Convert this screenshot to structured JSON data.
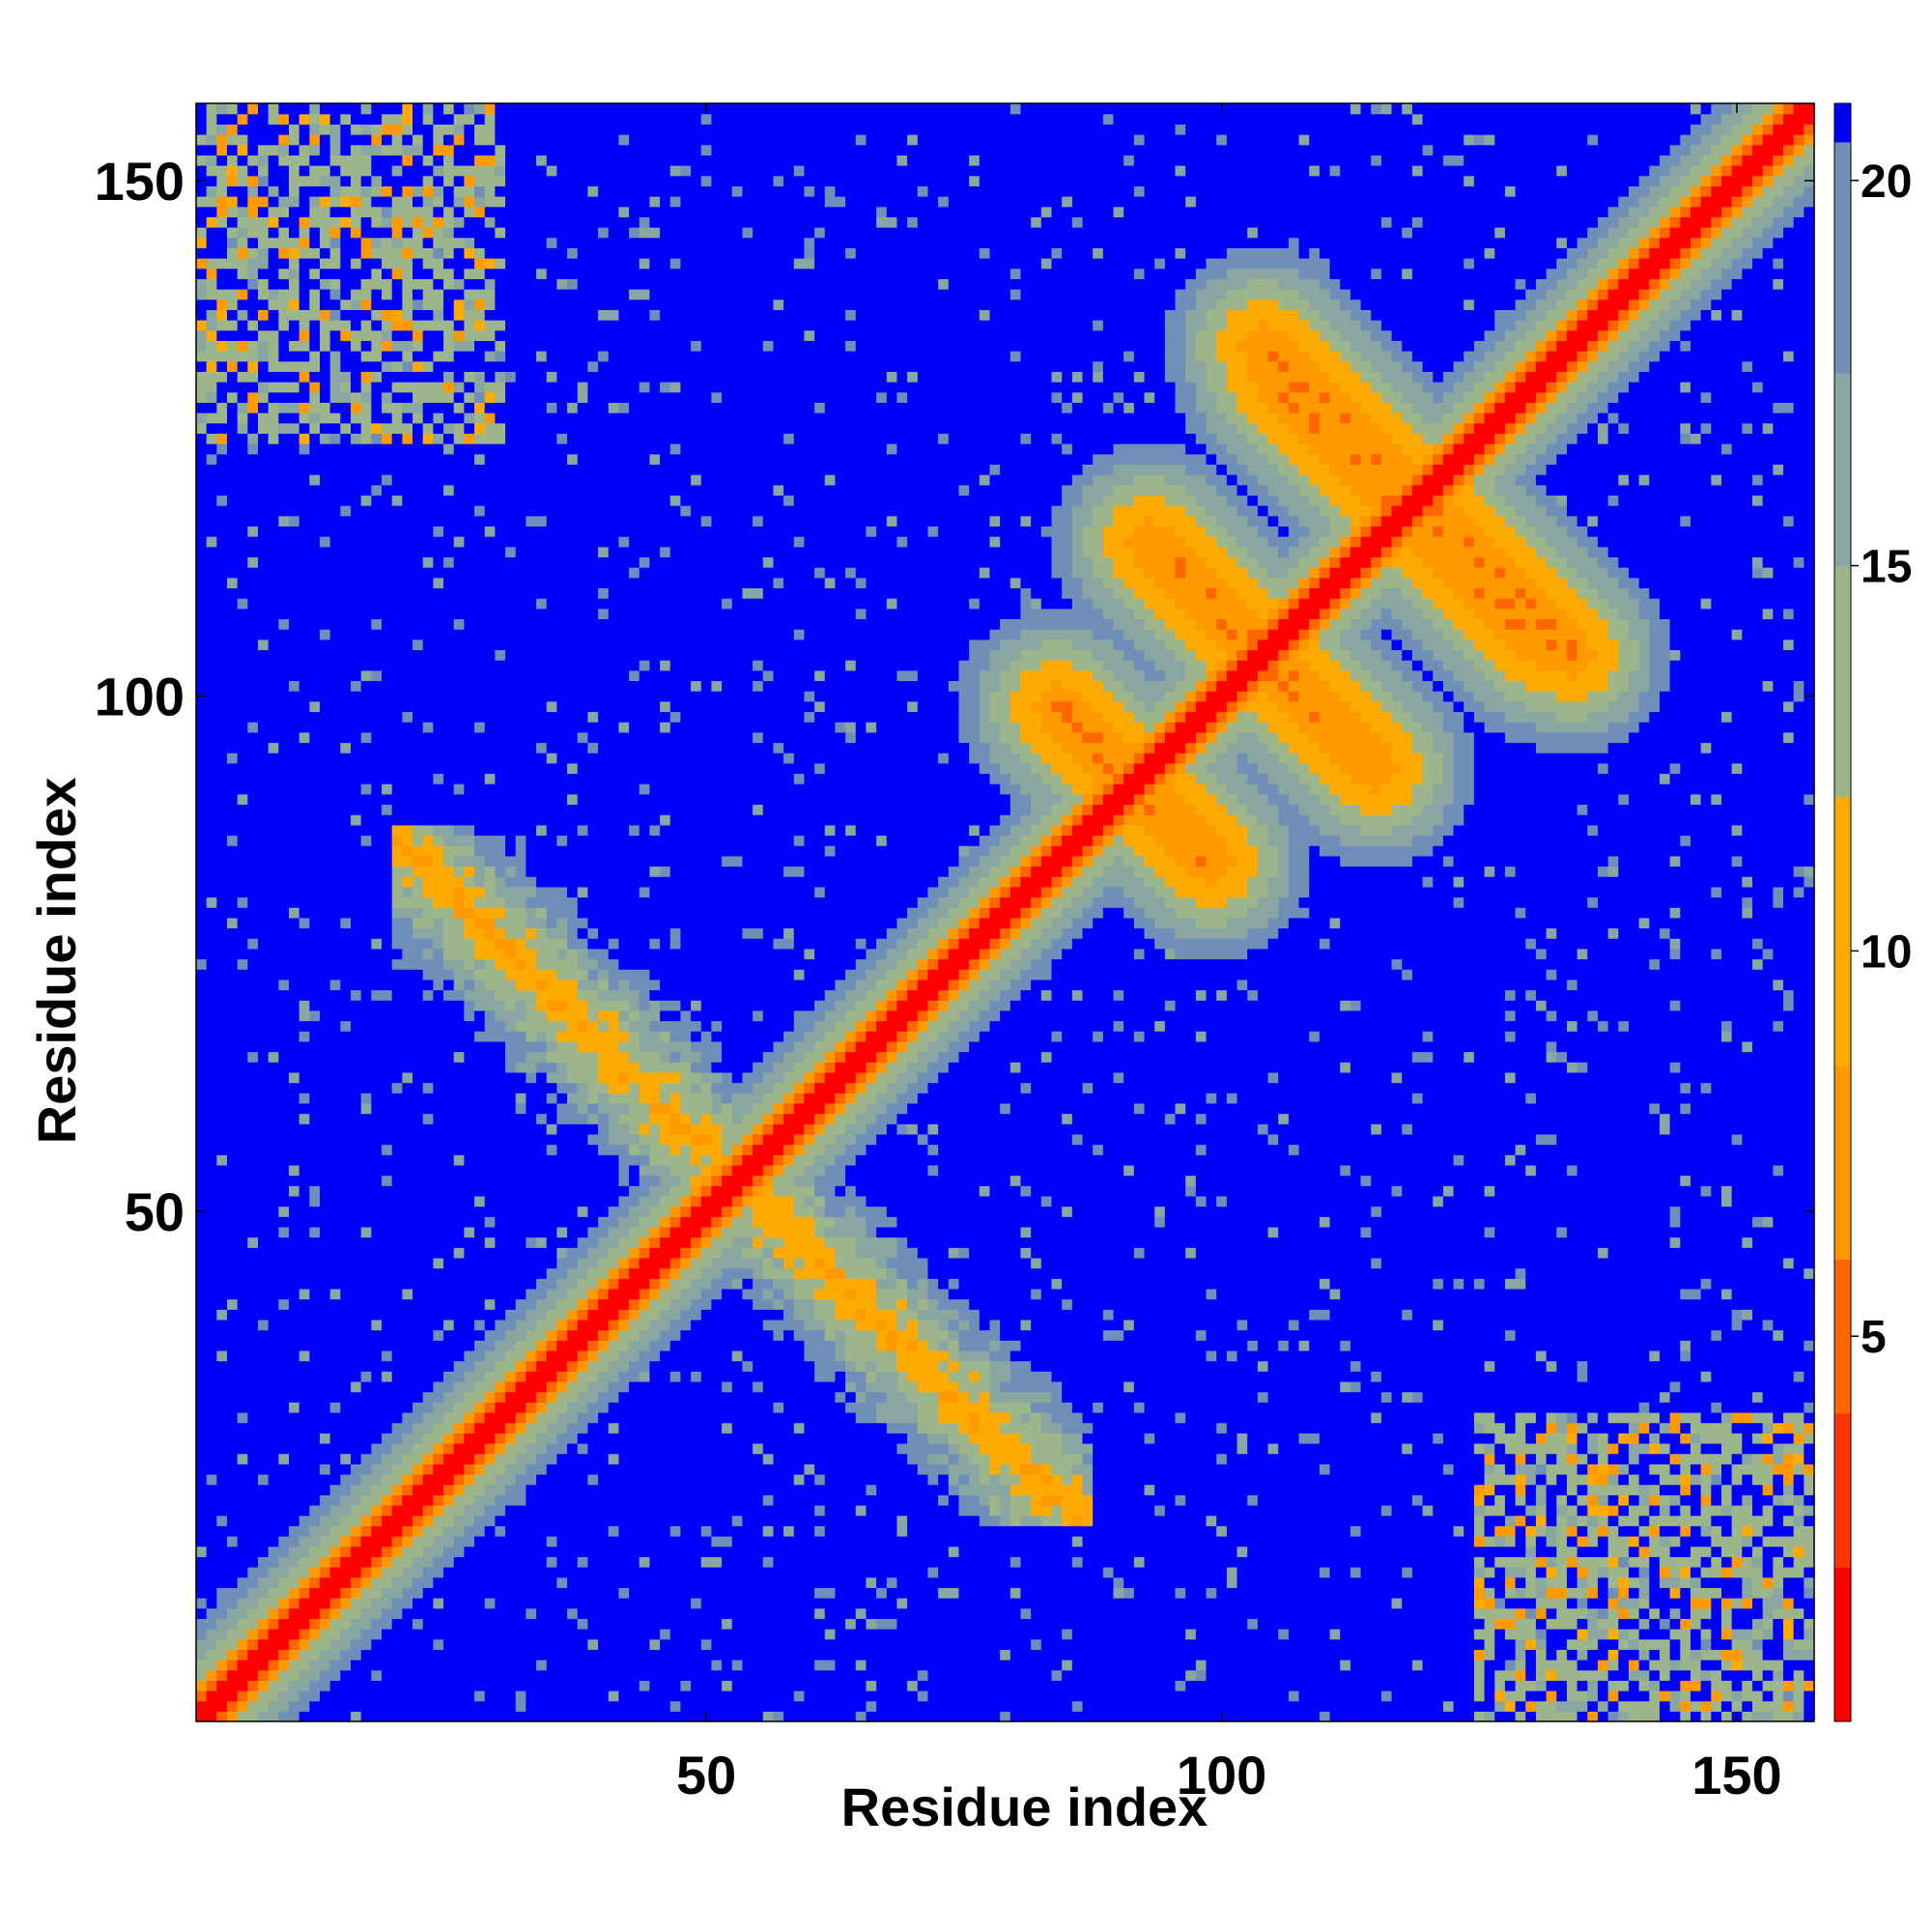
{
  "chart_data": {
    "type": "heatmap",
    "title": "",
    "xlabel": "Residue index",
    "ylabel": "Residue index",
    "xlim": [
      1,
      157
    ],
    "ylim": [
      1,
      157
    ],
    "x_ticks": [
      50,
      100,
      150
    ],
    "y_ticks": [
      50,
      100,
      150
    ],
    "x_tick_labels": [
      "50",
      "100",
      "150"
    ],
    "y_tick_labels": [
      "50",
      "100",
      "150"
    ],
    "grid": false,
    "colorbar": {
      "placement": "right",
      "range": [
        0,
        21
      ],
      "ticks": [
        5,
        10,
        15,
        20
      ],
      "tick_labels": [
        "5",
        "10",
        "15",
        "20"
      ],
      "colors": [
        "#ff0000",
        "#ff3300",
        "#ff6600",
        "#ff9900",
        "#ffaa00",
        "#9db58a",
        "#8aa6a0",
        "#6f8fb8",
        "#0000ff"
      ],
      "bounds": [
        0,
        2,
        4,
        6,
        8.5,
        12,
        15,
        17.5,
        20.5,
        21
      ]
    },
    "value_description": "pairwise residue distance",
    "features": {
      "main_diagonal": {
        "from": 1,
        "to": 157,
        "value": 0
      },
      "helix_hairpin_antidiagonal": {
        "center": 53,
        "span": [
          20,
          87
        ],
        "value": 8
      },
      "sheet_contacts": [
        {
          "start": [
            84,
            99
          ],
          "end": [
            98,
            85
          ],
          "value": 6
        },
        {
          "start": [
            93,
            115
          ],
          "end": [
            115,
            93
          ],
          "value": 6
        },
        {
          "start": [
            105,
            131
          ],
          "end": [
            131,
            105
          ],
          "value": 6
        },
        {
          "start": [
            118,
            120
          ],
          "end": [
            134,
            104
          ],
          "value": 6
        }
      ],
      "corner_contacts": [
        {
          "x": [
            1,
            30
          ],
          "y": [
            125,
            157
          ],
          "value": 16
        },
        {
          "x": [
            125,
            157
          ],
          "y": [
            1,
            30
          ],
          "value": 16
        }
      ]
    }
  }
}
